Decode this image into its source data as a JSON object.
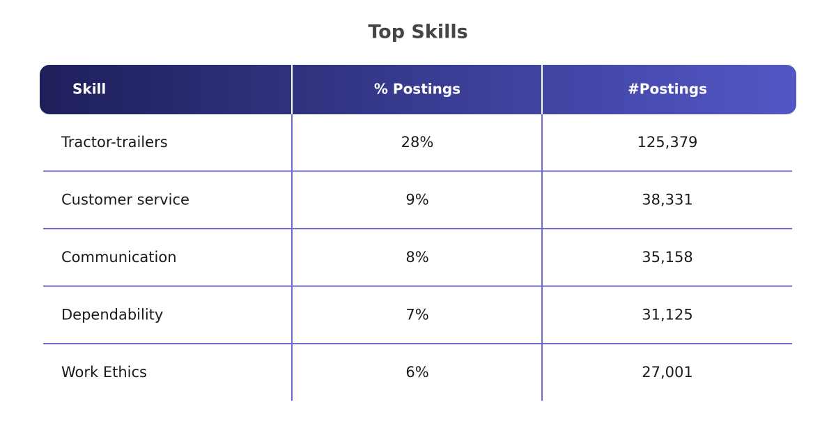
{
  "header": {
    "title": "Top Skills"
  },
  "table": {
    "columns": [
      "Skill",
      "% Postings",
      "#Postings"
    ],
    "rows": [
      [
        "Tractor-trailers",
        "28%",
        "125,379"
      ],
      [
        "Customer service",
        "9%",
        "38,331"
      ],
      [
        "Communication",
        "8%",
        "35,158"
      ],
      [
        "Dependability",
        "7%",
        "31,125"
      ],
      [
        "Work Ethics",
        "6%",
        "27,001"
      ]
    ]
  }
}
